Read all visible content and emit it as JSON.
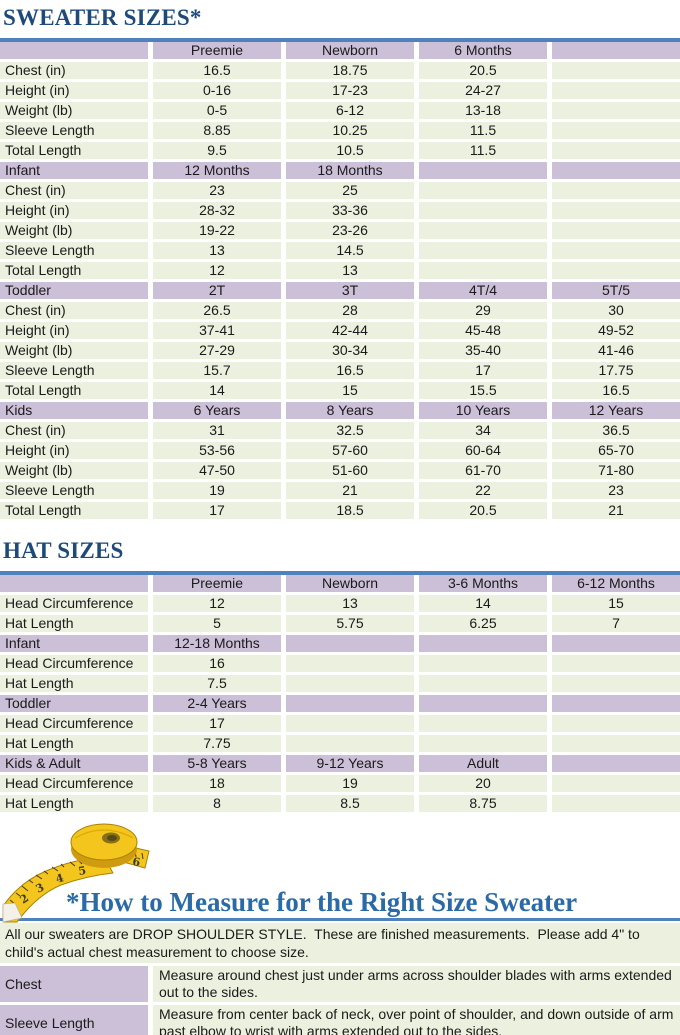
{
  "colors": {
    "accent_bar": "#4f81bd",
    "header_cell": "#ccc0d9",
    "data_cell": "#ebf1de",
    "title_text": "#1e4a7a",
    "subheading_text": "#2a6aa5",
    "tape_yellow": "#f3c51d"
  },
  "icons": {
    "measuring_tape": "measuring-tape-image"
  },
  "sweater": {
    "title": "SWEATER SIZES*",
    "sections": [
      {
        "header": [
          "",
          "Preemie",
          "Newborn",
          "6 Months",
          ""
        ],
        "rows": [
          [
            "Chest (in)",
            "16.5",
            "18.75",
            "20.5",
            ""
          ],
          [
            "Height (in)",
            "0-16",
            "17-23",
            "24-27",
            ""
          ],
          [
            "Weight (lb)",
            "0-5",
            "6-12",
            "13-18",
            ""
          ],
          [
            "Sleeve Length",
            "8.85",
            "10.25",
            "11.5",
            ""
          ],
          [
            "Total Length",
            "9.5",
            "10.5",
            "11.5",
            ""
          ]
        ]
      },
      {
        "header": [
          "Infant",
          "12 Months",
          "18 Months",
          "",
          ""
        ],
        "rows": [
          [
            "Chest (in)",
            "23",
            "25",
            "",
            ""
          ],
          [
            "Height (in)",
            "28-32",
            "33-36",
            "",
            ""
          ],
          [
            "Weight (lb)",
            "19-22",
            "23-26",
            "",
            ""
          ],
          [
            "Sleeve Length",
            "13",
            "14.5",
            "",
            ""
          ],
          [
            "Total Length",
            "12",
            "13",
            "",
            ""
          ]
        ]
      },
      {
        "header": [
          "Toddler",
          "2T",
          "3T",
          "4T/4",
          "5T/5"
        ],
        "rows": [
          [
            "Chest (in)",
            "26.5",
            "28",
            "29",
            "30"
          ],
          [
            "Height (in)",
            "37-41",
            "42-44",
            "45-48",
            "49-52"
          ],
          [
            "Weight (lb)",
            "27-29",
            "30-34",
            "35-40",
            "41-46"
          ],
          [
            "Sleeve Length",
            "15.7",
            "16.5",
            "17",
            "17.75"
          ],
          [
            "Total Length",
            "14",
            "15",
            "15.5",
            "16.5"
          ]
        ]
      },
      {
        "header": [
          "Kids",
          "6 Years",
          "8 Years",
          "10 Years",
          "12 Years"
        ],
        "rows": [
          [
            "Chest (in)",
            "31",
            "32.5",
            "34",
            "36.5"
          ],
          [
            "Height (in)",
            "53-56",
            "57-60",
            "60-64",
            "65-70"
          ],
          [
            "Weight (lb)",
            "47-50",
            "51-60",
            "61-70",
            "71-80"
          ],
          [
            "Sleeve Length",
            "19",
            "21",
            "22",
            "23"
          ],
          [
            "Total Length",
            "17",
            "18.5",
            "20.5",
            "21"
          ]
        ]
      }
    ]
  },
  "hat": {
    "title": "HAT SIZES",
    "sections": [
      {
        "header": [
          "",
          "Preemie",
          "Newborn",
          "3-6 Months",
          "6-12 Months"
        ],
        "rows": [
          [
            "Head Circumference",
            "12",
            "13",
            "14",
            "15"
          ],
          [
            "Hat Length",
            "5",
            "5.75",
            "6.25",
            "7"
          ]
        ]
      },
      {
        "header": [
          "Infant",
          "12-18 Months",
          "",
          "",
          ""
        ],
        "rows": [
          [
            "Head Circumference",
            "16",
            "",
            "",
            ""
          ],
          [
            "Hat Length",
            "7.5",
            "",
            "",
            ""
          ]
        ]
      },
      {
        "header": [
          "Toddler",
          "2-4 Years",
          "",
          "",
          ""
        ],
        "rows": [
          [
            "Head Circumference",
            "17",
            "",
            "",
            ""
          ],
          [
            "Hat Length",
            "7.75",
            "",
            "",
            ""
          ]
        ]
      },
      {
        "header": [
          "Kids & Adult",
          "5-8 Years",
          "9-12 Years",
          "Adult",
          ""
        ],
        "rows": [
          [
            "Head Circumference",
            "18",
            "19",
            "20",
            ""
          ],
          [
            "Hat Length",
            "8",
            "8.5",
            "8.75",
            ""
          ]
        ]
      }
    ]
  },
  "measure": {
    "heading": "*How to Measure for the Right Size Sweater",
    "intro": "All our sweaters are DROP SHOULDER STYLE.  These are finished measurements.  Please add 4\" to child's actual chest measurement to choose size.",
    "rows": [
      {
        "label": "Chest",
        "text": "Measure around chest just under arms across shoulder blades with arms extended out to the sides."
      },
      {
        "label": "Sleeve Length",
        "text": "Measure from center back of neck, over point of shoulder, and down outside of arm past elbow to wrist with arms extended out to the sides."
      }
    ]
  }
}
